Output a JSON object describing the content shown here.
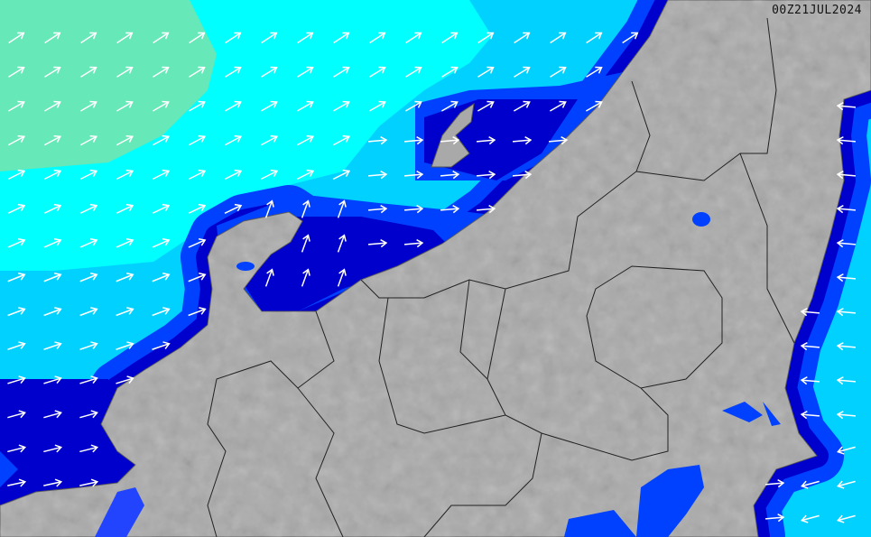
{
  "map": {
    "timestamp": "00Z21JUL2024",
    "colors": {
      "land": "#a9a9a9",
      "ocean_low": "#66e8b8",
      "ocean_base": "#00ffff",
      "ocean_mid": "#00ccff",
      "ocean_high": "#0040ff",
      "ocean_max": "#0000cc",
      "arrow": "#ffffff",
      "border": "#222222"
    },
    "arrow_icon": "wind-arrow-icon"
  }
}
